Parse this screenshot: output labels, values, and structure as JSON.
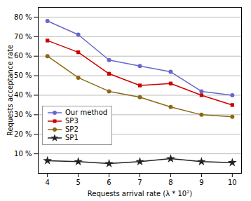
{
  "chart_data": {
    "type": "line",
    "x": [
      4,
      5,
      6,
      7,
      8,
      9,
      10
    ],
    "series": [
      {
        "name": "Our method",
        "color": "#6666cc",
        "marker": "circle",
        "values": [
          78,
          71,
          58,
          55,
          52,
          42,
          40
        ]
      },
      {
        "name": "SP3",
        "color": "#cc0000",
        "marker": "square",
        "values": [
          68,
          62,
          51,
          45,
          46,
          40,
          35
        ]
      },
      {
        "name": "SP2",
        "color": "#8B6914",
        "marker": "circle",
        "values": [
          60,
          49,
          42,
          39,
          34,
          30,
          29
        ]
      },
      {
        "name": "SP1",
        "color": "#222222",
        "marker": "star",
        "values": [
          6.5,
          6.0,
          5.0,
          6.0,
          7.5,
          6.0,
          5.5
        ]
      }
    ],
    "xlabel": "Requests arrival rate (λ * 10²)",
    "ylabel": "Requests acceptance rate",
    "xlim": [
      3.7,
      10.3
    ],
    "xticks": [
      4,
      5,
      6,
      7,
      8,
      9,
      10
    ],
    "ylim": [
      0,
      85
    ],
    "yticks": [
      {
        "value": 10,
        "label": "10 %"
      },
      {
        "value": 20,
        "label": "20 %"
      },
      {
        "value": 30,
        "label": "30 %"
      },
      {
        "value": 40,
        "label": "40 %"
      },
      {
        "value": 50,
        "label": "50 %"
      },
      {
        "value": 60,
        "label": "60 %"
      },
      {
        "value": 70,
        "label": "70 %"
      },
      {
        "value": 80,
        "label": "80 %"
      }
    ],
    "grid": "y",
    "legend": "lower left"
  }
}
